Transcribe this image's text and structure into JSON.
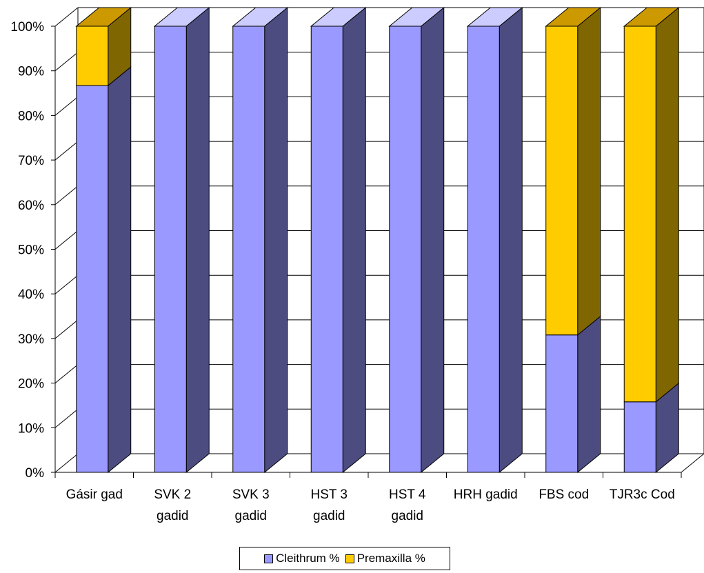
{
  "chart_data": {
    "type": "bar",
    "stacked": true,
    "percent_stacked": true,
    "three_d": true,
    "categories": [
      [
        "Gásir gad"
      ],
      [
        "SVK 2",
        "gadid"
      ],
      [
        "SVK 3",
        "gadid"
      ],
      [
        "HST 3",
        "gadid"
      ],
      [
        "HST 4",
        "gadid"
      ],
      [
        "HRH gadid"
      ],
      [
        "FBS cod"
      ],
      [
        "TJR3c Cod"
      ]
    ],
    "series": [
      {
        "name": "Cleithrum %",
        "values": [
          86.7,
          100,
          100,
          100,
          100,
          100,
          30.8,
          15.8
        ],
        "color": "#9999ff",
        "side_color": "#4c4c80"
      },
      {
        "name": "Premaxilla %",
        "values": [
          13.3,
          0,
          0,
          0,
          0,
          0,
          69.2,
          84.2
        ],
        "color": "#ffcc00",
        "side_color": "#806600"
      }
    ],
    "y_ticks": [
      "0%",
      "10%",
      "20%",
      "30%",
      "40%",
      "50%",
      "60%",
      "70%",
      "80%",
      "90%",
      "100%"
    ],
    "ylim": [
      0,
      100
    ],
    "grid": true,
    "legend_position": "bottom"
  }
}
